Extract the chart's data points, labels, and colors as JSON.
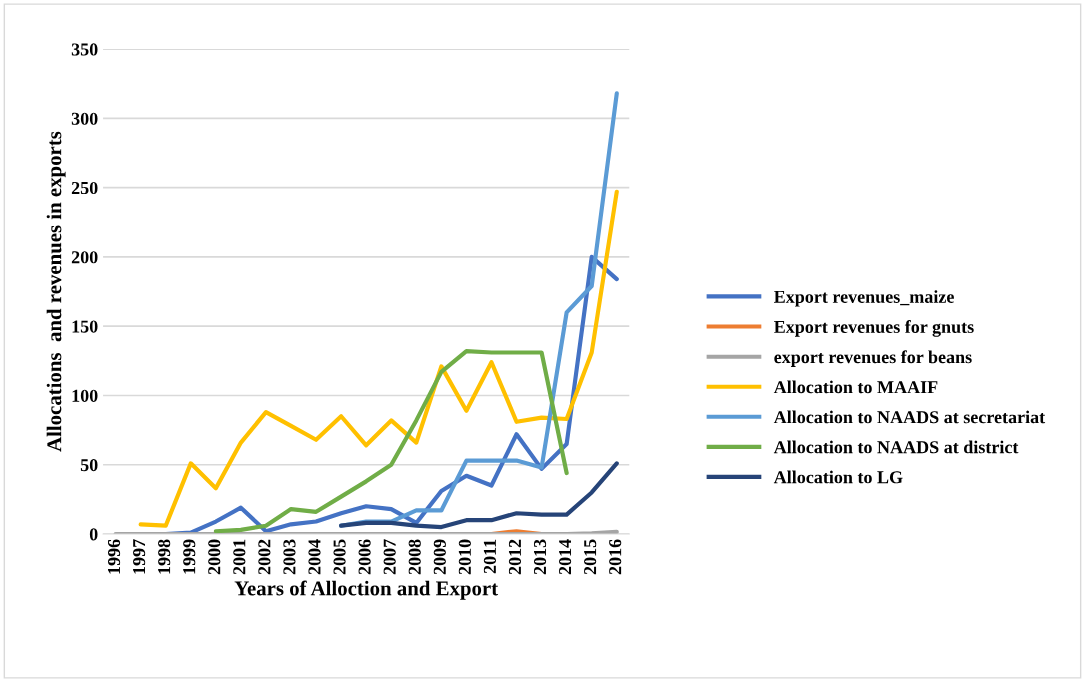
{
  "chart_data": {
    "type": "line",
    "xlabel": "Years of Alloction and Export",
    "ylabel": "Allocations  and revenues in exports",
    "categories": [
      "1996",
      "1997",
      "1998",
      "1999",
      "2000",
      "2001",
      "2002",
      "2003",
      "2004",
      "2005",
      "2006",
      "2007",
      "2008",
      "2009",
      "2010",
      "2011",
      "2012",
      "2013",
      "2014",
      "2015",
      "2016"
    ],
    "series": [
      {
        "name": "Export revenues_maize",
        "color": "#4472c4",
        "values": [
          null,
          null,
          0,
          1,
          9,
          19,
          2,
          7,
          9,
          15,
          20,
          18,
          8,
          31,
          42,
          35,
          72,
          47,
          65,
          200,
          184
        ]
      },
      {
        "name": "Export revenues for gnuts",
        "color": "#ed7d31",
        "values": [
          null,
          null,
          null,
          null,
          null,
          null,
          null,
          null,
          null,
          null,
          null,
          null,
          null,
          null,
          null,
          0,
          2,
          0,
          null,
          null,
          null
        ]
      },
      {
        "name": "export revenues for beans",
        "color": "#a5a5a5",
        "values": [
          0,
          0,
          0,
          0,
          0,
          0,
          0,
          0,
          0,
          0,
          0,
          0,
          0,
          0,
          0,
          0,
          0,
          0,
          0,
          0.5,
          1.5
        ]
      },
      {
        "name": "Allocation to MAAIF",
        "color": "#ffc000",
        "values": [
          null,
          7,
          6,
          51,
          33,
          66,
          88,
          78,
          68,
          85,
          64,
          82,
          66,
          121,
          89,
          124,
          81,
          84,
          83,
          131,
          247
        ]
      },
      {
        "name": "Allocation to NAADS at secretariat",
        "color": "#5b9bd5",
        "values": [
          null,
          null,
          null,
          null,
          null,
          null,
          null,
          null,
          null,
          6,
          9,
          9,
          17,
          17,
          53,
          53,
          53,
          48,
          160,
          179,
          318
        ]
      },
      {
        "name": "Allocation to NAADS at district",
        "color": "#70ad47",
        "values": [
          null,
          null,
          null,
          null,
          2,
          3,
          6,
          18,
          16,
          27,
          38,
          50,
          82,
          117,
          132,
          131,
          131,
          131,
          44,
          null,
          null
        ]
      },
      {
        "name": "Allocation to LG",
        "color": "#264478",
        "values": [
          null,
          null,
          null,
          null,
          null,
          null,
          null,
          null,
          null,
          6,
          8,
          8,
          6,
          5,
          10,
          10,
          15,
          14,
          14,
          30,
          51
        ]
      }
    ],
    "ylim": [
      0,
      350
    ],
    "yticks": [
      0,
      50,
      100,
      150,
      200,
      250,
      300,
      350
    ],
    "grid": "y",
    "legend": "right",
    "line_style": "solid",
    "marker": "none"
  }
}
